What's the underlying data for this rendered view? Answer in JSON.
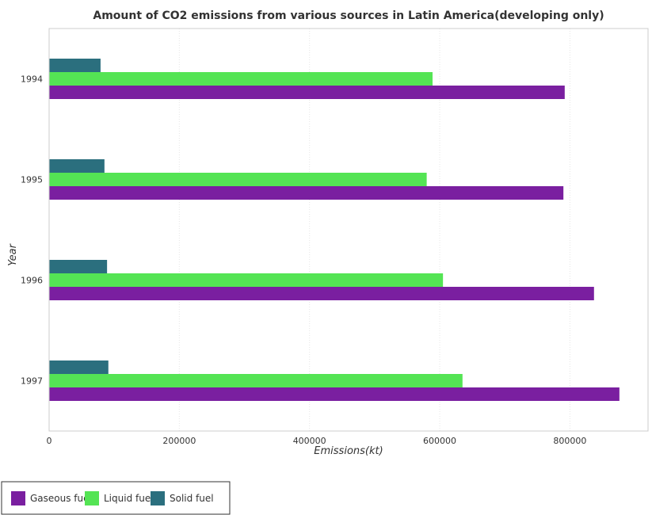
{
  "chart_data": {
    "type": "bar",
    "orientation": "horizontal",
    "title": "Amount of CO2 emissions from various sources in Latin America(developing only)",
    "xlabel": "Emissions(kt)",
    "ylabel": "Year",
    "categories": [
      "1994",
      "1995",
      "1996",
      "1997"
    ],
    "xlim": [
      0,
      920000
    ],
    "xticks": [
      0,
      200000,
      400000,
      600000,
      800000
    ],
    "xtick_labels": [
      "0",
      "200000",
      "400000",
      "600000",
      "800000"
    ],
    "series": [
      {
        "name": "Gaseous fuel",
        "color": "#7a1fa0",
        "values": [
          792000,
          790000,
          837000,
          876000
        ]
      },
      {
        "name": "Liquid fuel",
        "color": "#54e454",
        "values": [
          589000,
          580000,
          605000,
          635000
        ]
      },
      {
        "name": "Solid fuel",
        "color": "#2b6f7e",
        "values": [
          79000,
          85000,
          89000,
          91000
        ]
      }
    ],
    "legend_position": "bottom-left",
    "grid": true
  }
}
